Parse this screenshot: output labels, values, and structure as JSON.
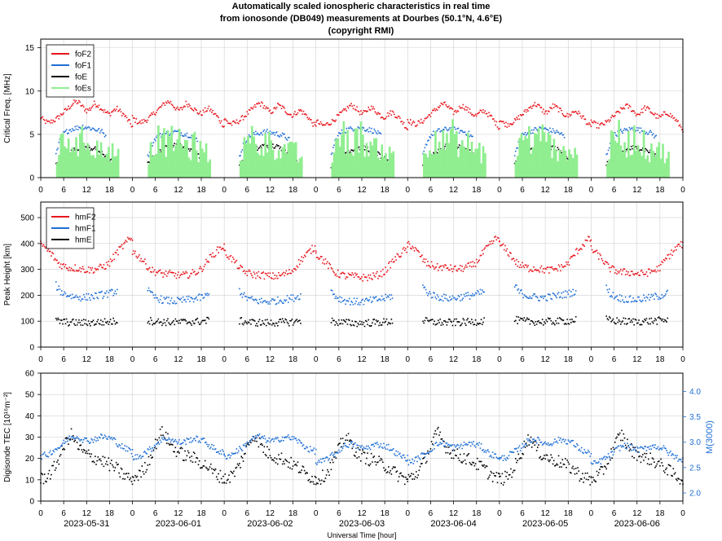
{
  "title": {
    "line1": "Automatically scaled ionospheric characteristics in real time",
    "line2": "from ionosonde (DB049) measurements at Dourbes (50.1°N, 4.6°E)",
    "line3": "(copyright RMI)"
  },
  "colors": {
    "red": "#e8141c",
    "blue": "#1f6fd6",
    "black": "#000000",
    "green": "#90ee90"
  },
  "chart_data": [
    {
      "type": "line",
      "ylabel": "Critical Freq. [MHz]",
      "ylim": [
        0,
        16
      ],
      "yticks": [
        0,
        5,
        10,
        15
      ],
      "xlim_hours": [
        0,
        168
      ],
      "xtick_labels": [
        "0",
        "6",
        "12",
        "18",
        "0",
        "6",
        "12",
        "18",
        "0",
        "6",
        "12",
        "18",
        "0",
        "6",
        "12",
        "18",
        "0",
        "6",
        "12",
        "18",
        "0",
        "6",
        "12",
        "18",
        "0",
        "6",
        "12",
        "18",
        "0"
      ],
      "legend": [
        "foF2",
        "foF1",
        "foE",
        "foEs"
      ],
      "legend_position": "top-left",
      "grid": true,
      "series": [
        {
          "name": "foF2",
          "color": "#e8141c",
          "style": "points",
          "x": [
            0,
            1,
            2,
            3,
            4,
            5,
            6,
            7,
            8,
            9,
            10,
            11,
            12,
            13,
            14,
            15,
            16,
            17,
            18,
            19,
            20,
            21,
            22,
            23,
            24
          ],
          "y": [
            6.8,
            6.4,
            6.2,
            6.4,
            6.6,
            7.0,
            7.4,
            7.8,
            8.2,
            8.6,
            8.5,
            8.0,
            7.6,
            7.8,
            8.4,
            8.2,
            7.8,
            7.4,
            7.2,
            7.6,
            7.8,
            7.4,
            7.0,
            6.4,
            5.8
          ]
        },
        {
          "name": "foF1",
          "color": "#1f6fd6",
          "style": "points",
          "x": [
            4,
            5,
            6,
            7,
            8,
            9,
            10,
            11,
            12,
            13,
            14,
            15,
            16,
            17
          ],
          "y": [
            2.5,
            4.0,
            4.8,
            5.1,
            5.3,
            5.4,
            5.5,
            5.6,
            5.5,
            5.4,
            5.3,
            5.2,
            5.0,
            4.6
          ]
        },
        {
          "name": "foE",
          "color": "#000000",
          "style": "points",
          "x": [
            4,
            5,
            6,
            7,
            8,
            9,
            10,
            11,
            12,
            13,
            14,
            15,
            16,
            17,
            18,
            19
          ],
          "y": [
            1.5,
            2.0,
            2.4,
            2.8,
            3.1,
            3.3,
            3.5,
            3.6,
            3.6,
            3.5,
            3.4,
            3.2,
            2.9,
            2.6,
            2.2,
            1.7
          ]
        },
        {
          "name": "foEs",
          "color": "#90ee90",
          "style": "bars",
          "x": [
            4,
            5,
            6,
            7,
            8,
            9,
            10,
            11,
            12,
            13,
            14,
            15,
            16,
            17,
            18,
            19,
            20
          ],
          "y": [
            2.5,
            3.5,
            4.0,
            4.5,
            4.0,
            3.5,
            4.0,
            4.5,
            4.0,
            3.5,
            3.5,
            3.0,
            3.5,
            3.0,
            3.0,
            2.5,
            2.5
          ]
        }
      ]
    },
    {
      "type": "scatter",
      "ylabel": "Peak Height [km]",
      "ylim": [
        0,
        560
      ],
      "yticks": [
        0,
        100,
        200,
        300,
        400,
        500
      ],
      "xlim_hours": [
        0,
        168
      ],
      "xtick_labels": [
        "0",
        "6",
        "12",
        "18",
        "0",
        "6",
        "12",
        "18",
        "0",
        "6",
        "12",
        "18",
        "0",
        "6",
        "12",
        "18",
        "0",
        "6",
        "12",
        "18",
        "0",
        "6",
        "12",
        "18",
        "0",
        "6",
        "12",
        "18",
        "0"
      ],
      "legend": [
        "hmF2",
        "hmF1",
        "hmE"
      ],
      "legend_position": "top-left",
      "grid": true,
      "series": [
        {
          "name": "hmF2",
          "color": "#e8141c",
          "x": [
            0,
            1,
            2,
            3,
            4,
            5,
            6,
            7,
            8,
            9,
            10,
            11,
            12,
            13,
            14,
            15,
            16,
            17,
            18,
            19,
            20,
            21,
            22,
            23,
            24
          ],
          "y": [
            380,
            370,
            355,
            340,
            320,
            305,
            300,
            295,
            290,
            292,
            290,
            288,
            285,
            285,
            286,
            290,
            295,
            300,
            310,
            330,
            350,
            365,
            380,
            395,
            400
          ]
        },
        {
          "name": "hmF1",
          "color": "#1f6fd6",
          "x": [
            4,
            5,
            6,
            7,
            8,
            9,
            10,
            11,
            12,
            13,
            14,
            15,
            16,
            17,
            18,
            19,
            20
          ],
          "y": [
            230,
            210,
            200,
            195,
            190,
            188,
            186,
            185,
            186,
            188,
            190,
            192,
            195,
            198,
            200,
            205,
            210
          ]
        },
        {
          "name": "hmE",
          "color": "#000000",
          "x": [
            4,
            5,
            6,
            7,
            8,
            9,
            10,
            11,
            12,
            13,
            14,
            15,
            16,
            17,
            18,
            19,
            20
          ],
          "y": [
            105,
            102,
            100,
            99,
            98,
            98,
            97,
            97,
            97,
            98,
            98,
            99,
            99,
            100,
            101,
            102,
            105
          ]
        }
      ]
    },
    {
      "type": "scatter",
      "ylabel": "Digisonde TEC [10¹⁶m⁻²]",
      "ylabel2": "M(3000)",
      "ylim": [
        0,
        60
      ],
      "yticks": [
        0,
        10,
        20,
        30,
        40,
        50,
        60
      ],
      "y2lim": [
        1.84,
        4.36
      ],
      "y2ticks": [
        "2.0",
        "2.5",
        "3.0",
        "3.5",
        "4.0"
      ],
      "xlim_hours": [
        0,
        168
      ],
      "xtick_labels": [
        "0",
        "6",
        "12",
        "18",
        "0",
        "6",
        "12",
        "18",
        "0",
        "6",
        "12",
        "18",
        "0",
        "6",
        "12",
        "18",
        "0",
        "6",
        "12",
        "18",
        "0",
        "6",
        "12",
        "18",
        "0",
        "6",
        "12",
        "18",
        "0"
      ],
      "date_labels": [
        "2023-05-31",
        "2023-06-01",
        "2023-06-02",
        "2023-06-03",
        "2023-06-04",
        "2023-06-05",
        "2023-06-06"
      ],
      "xlabel": "Universal Time [hour]",
      "grid": true,
      "series": [
        {
          "axis": "left",
          "color": "#000000",
          "x": [
            0,
            1,
            2,
            3,
            4,
            5,
            6,
            7,
            8,
            9,
            10,
            11,
            12,
            13,
            14,
            15,
            16,
            17,
            18,
            19,
            20,
            21,
            22,
            23,
            24
          ],
          "y": [
            10,
            11,
            12,
            14,
            17,
            21,
            25,
            29,
            31,
            28,
            25,
            23,
            22,
            21,
            20,
            20,
            19,
            18,
            17,
            16,
            15,
            13,
            12,
            11,
            10
          ]
        },
        {
          "axis": "right",
          "color": "#1f6fd6",
          "x": [
            0,
            1,
            2,
            3,
            4,
            5,
            6,
            7,
            8,
            9,
            10,
            11,
            12,
            13,
            14,
            15,
            16,
            17,
            18,
            19,
            20,
            21,
            22,
            23,
            24
          ],
          "y": [
            2.6,
            2.62,
            2.64,
            2.7,
            2.74,
            2.78,
            2.85,
            2.92,
            2.96,
            2.98,
            2.96,
            2.92,
            2.9,
            2.9,
            2.92,
            2.95,
            2.97,
            2.96,
            2.94,
            2.92,
            2.85,
            2.8,
            2.75,
            2.72,
            2.7
          ]
        }
      ]
    }
  ]
}
